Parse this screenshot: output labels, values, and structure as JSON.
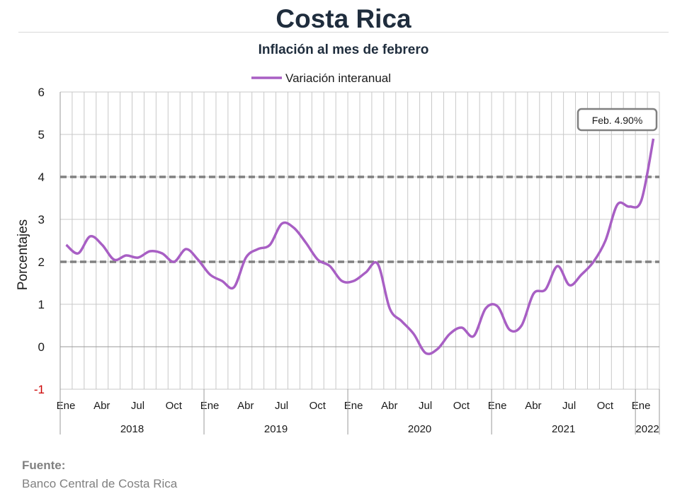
{
  "header": {
    "title": "Costa Rica",
    "subtitle": "Inflación al mes de febrero"
  },
  "source": {
    "label": "Fuente:",
    "text": "Banco Central de Costa Rica"
  },
  "colors": {
    "series": "#a85fc4",
    "grid": "#c8c8c8",
    "reference_lines": "#808080",
    "negative_tick": "#cc0000",
    "text": "#1a1a1a"
  },
  "chart_data": {
    "type": "line",
    "ylabel": "Porcentajes",
    "ylim": [
      -1,
      6
    ],
    "yticks": [
      -1,
      0,
      1,
      2,
      3,
      4,
      5,
      6
    ],
    "grid": true,
    "legend_position": "top-center",
    "x_month_labels": [
      "Ene",
      "Abr",
      "Jul",
      "Oct",
      "Ene",
      "Abr",
      "Jul",
      "Oct",
      "Ene",
      "Abr",
      "Jul",
      "Oct",
      "Ene",
      "Abr",
      "Jul",
      "Oct",
      "Ene"
    ],
    "x_year_labels": [
      "2018",
      "2019",
      "2020",
      "2021",
      "2022"
    ],
    "reference_lines": [
      2,
      4
    ],
    "annotation": "Feb. 4.90%",
    "series": [
      {
        "name": "Variación interanual",
        "x": [
          "2018-01",
          "2018-02",
          "2018-03",
          "2018-04",
          "2018-05",
          "2018-06",
          "2018-07",
          "2018-08",
          "2018-09",
          "2018-10",
          "2018-11",
          "2018-12",
          "2019-01",
          "2019-02",
          "2019-03",
          "2019-04",
          "2019-05",
          "2019-06",
          "2019-07",
          "2019-08",
          "2019-09",
          "2019-10",
          "2019-11",
          "2019-12",
          "2020-01",
          "2020-02",
          "2020-03",
          "2020-04",
          "2020-05",
          "2020-06",
          "2020-07",
          "2020-08",
          "2020-09",
          "2020-10",
          "2020-11",
          "2020-12",
          "2021-01",
          "2021-02",
          "2021-03",
          "2021-04",
          "2021-05",
          "2021-06",
          "2021-07",
          "2021-08",
          "2021-09",
          "2021-10",
          "2021-11",
          "2021-12",
          "2022-01",
          "2022-02"
        ],
        "values": [
          2.4,
          2.2,
          2.6,
          2.4,
          2.05,
          2.15,
          2.1,
          2.25,
          2.2,
          2.0,
          2.3,
          2.05,
          1.7,
          1.55,
          1.4,
          2.1,
          2.3,
          2.4,
          2.9,
          2.8,
          2.45,
          2.05,
          1.9,
          1.55,
          1.55,
          1.75,
          1.95,
          0.9,
          0.6,
          0.3,
          -0.15,
          -0.05,
          0.3,
          0.45,
          0.25,
          0.9,
          0.95,
          0.4,
          0.5,
          1.25,
          1.35,
          1.9,
          1.45,
          1.7,
          2.0,
          2.5,
          3.35,
          3.3,
          3.45,
          4.9
        ]
      }
    ]
  }
}
